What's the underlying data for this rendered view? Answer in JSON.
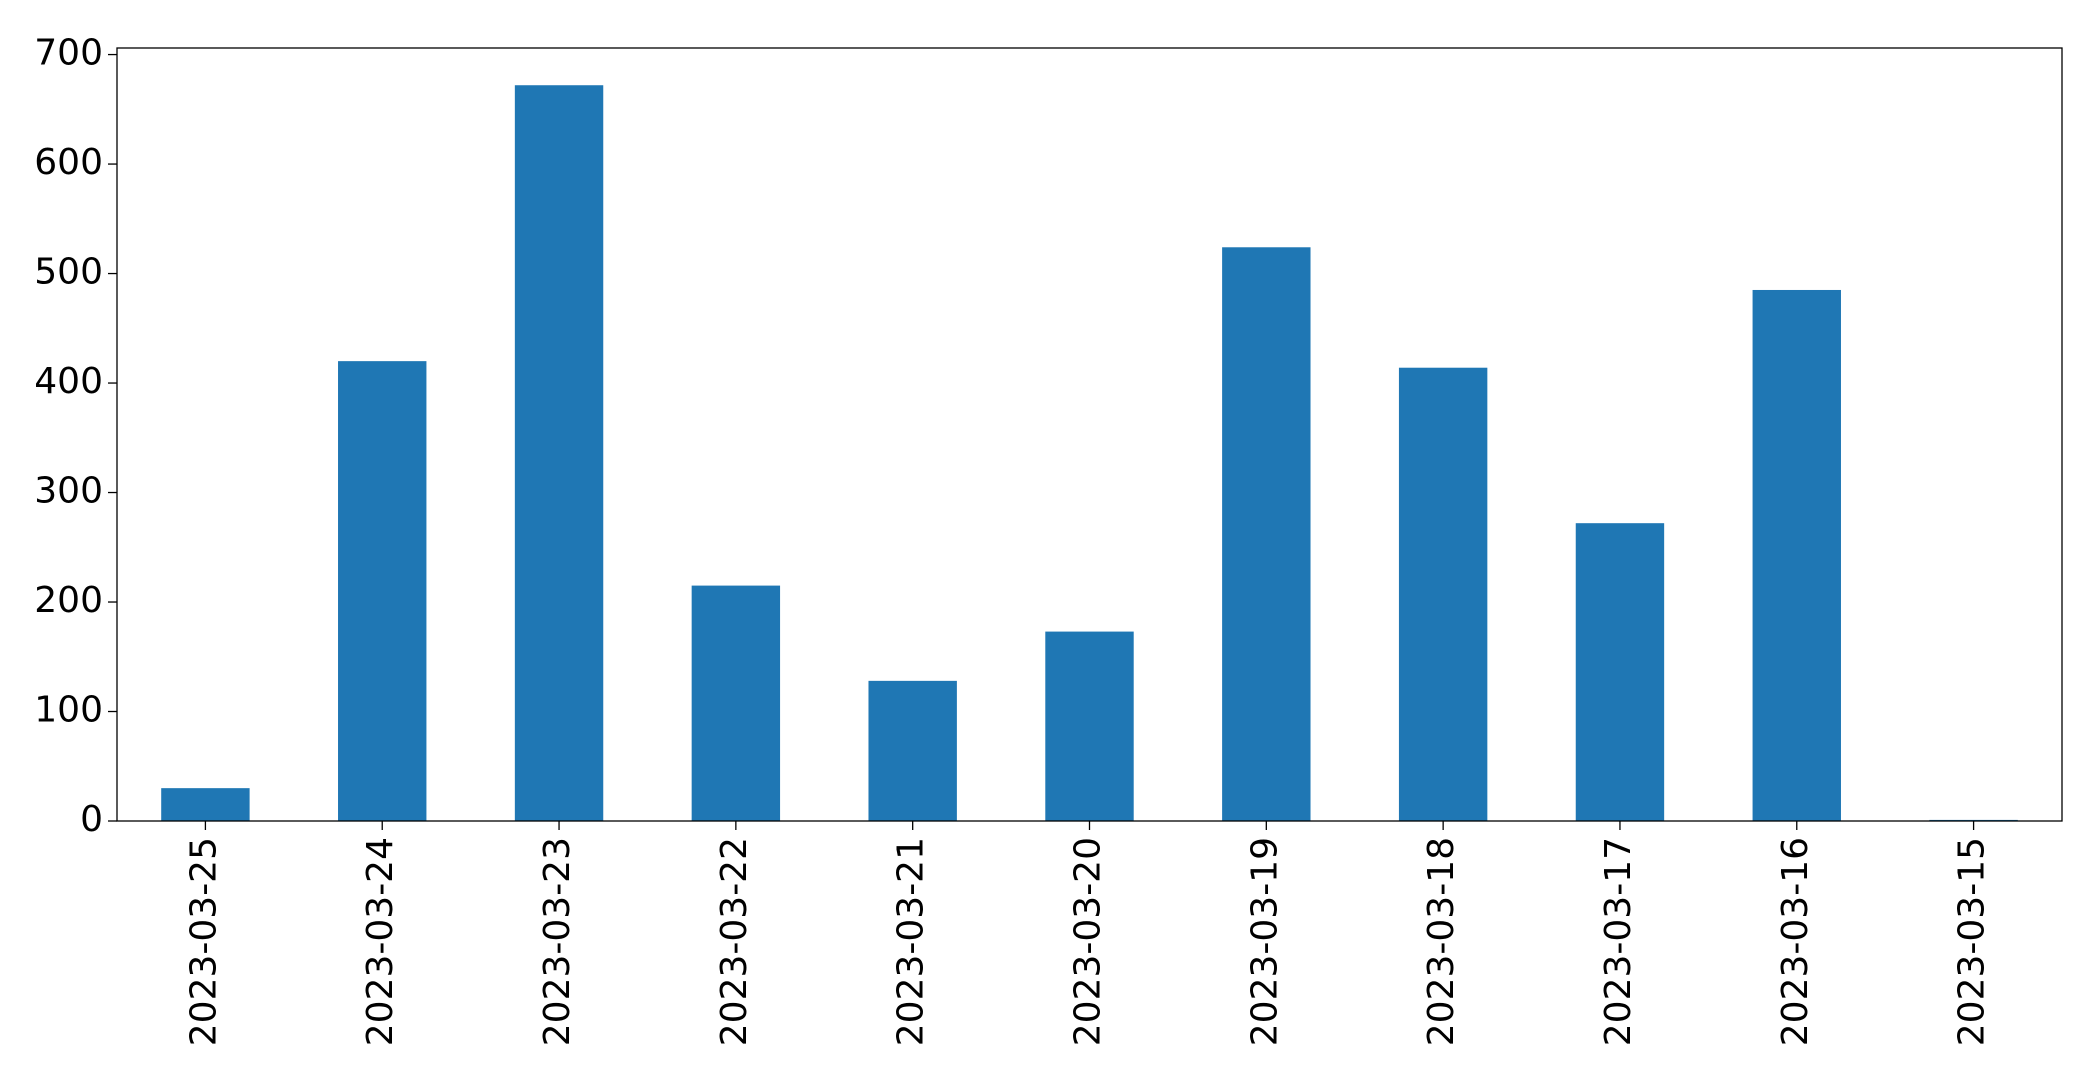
{
  "chart_data": {
    "type": "bar",
    "categories": [
      "2023-03-25",
      "2023-03-24",
      "2023-03-23",
      "2023-03-22",
      "2023-03-21",
      "2023-03-20",
      "2023-03-19",
      "2023-03-18",
      "2023-03-17",
      "2023-03-16",
      "2023-03-15"
    ],
    "values": [
      30,
      420,
      672,
      215,
      128,
      173,
      524,
      414,
      272,
      485,
      1
    ],
    "color": "#1f77b4",
    "ylim": [
      0,
      706
    ],
    "yticks": [
      0,
      100,
      200,
      300,
      400,
      500,
      600,
      700
    ],
    "grid": false
  }
}
